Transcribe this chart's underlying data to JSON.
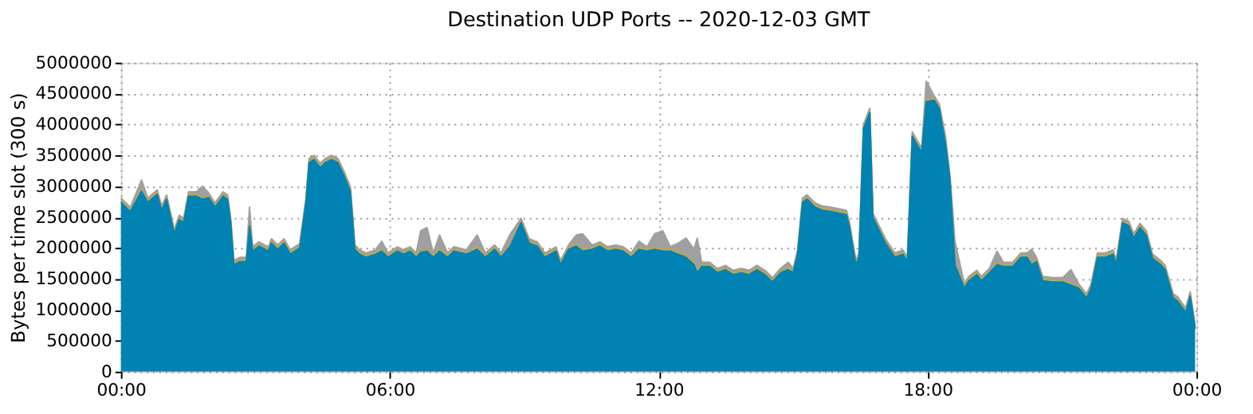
{
  "chart_data": {
    "type": "area",
    "stacked": true,
    "title": "Destination UDP Ports -- 2020-12-03 GMT",
    "ylabel": "Bytes per time slot (300 s)",
    "x": [
      0.0,
      0.21,
      0.46,
      0.6,
      0.81,
      0.91,
      1.02,
      1.19,
      1.3,
      1.4,
      1.51,
      1.68,
      1.82,
      1.96,
      2.1,
      2.28,
      2.38,
      2.45,
      2.52,
      2.66,
      2.8,
      2.87,
      2.94,
      3.08,
      3.29,
      3.36,
      3.5,
      3.64,
      3.78,
      3.99,
      4.13,
      4.2,
      4.31,
      4.45,
      4.56,
      4.7,
      4.84,
      4.98,
      5.12,
      5.22,
      5.33,
      5.47,
      5.68,
      5.82,
      5.96,
      6.17,
      6.31,
      6.45,
      6.59,
      6.69,
      6.83,
      6.97,
      7.11,
      7.29,
      7.43,
      7.71,
      7.95,
      8.13,
      8.34,
      8.48,
      8.69,
      8.93,
      9.11,
      9.29,
      9.46,
      9.71,
      9.81,
      9.99,
      10.16,
      10.3,
      10.51,
      10.69,
      10.86,
      11.04,
      11.21,
      11.39,
      11.56,
      11.74,
      11.91,
      12.09,
      12.26,
      12.44,
      12.61,
      12.79,
      12.86,
      12.96,
      13.14,
      13.31,
      13.49,
      13.66,
      13.84,
      14.02,
      14.19,
      14.37,
      14.54,
      14.72,
      14.89,
      15.0,
      15.1,
      15.21,
      15.31,
      15.49,
      15.66,
      15.84,
      16.19,
      16.26,
      16.4,
      16.47,
      16.57,
      16.71,
      16.78,
      16.89,
      17.06,
      17.27,
      17.45,
      17.55,
      17.66,
      17.76,
      17.87,
      17.97,
      18.15,
      18.26,
      18.4,
      18.5,
      18.61,
      18.82,
      18.92,
      19.1,
      19.2,
      19.38,
      19.55,
      19.69,
      19.9,
      20.08,
      20.22,
      20.32,
      20.43,
      20.57,
      20.78,
      21.02,
      21.2,
      21.37,
      21.55,
      21.65,
      21.79,
      21.97,
      22.14,
      22.21,
      22.35,
      22.49,
      22.6,
      22.74,
      22.88,
      23.02,
      23.2,
      23.3,
      23.48,
      23.58,
      23.76,
      23.86,
      23.97
    ],
    "series": [
      {
        "color": "#0083b3",
        "values": [
          2740000,
          2590000,
          2920000,
          2740000,
          2870000,
          2610000,
          2790000,
          2230000,
          2460000,
          2410000,
          2840000,
          2840000,
          2790000,
          2820000,
          2660000,
          2840000,
          2790000,
          2410000,
          1730000,
          1780000,
          1780000,
          2360000,
          1950000,
          2030000,
          1950000,
          2080000,
          1980000,
          2080000,
          1900000,
          2000000,
          2740000,
          3380000,
          3430000,
          3300000,
          3380000,
          3430000,
          3380000,
          3170000,
          2920000,
          1980000,
          1900000,
          1850000,
          1900000,
          1950000,
          1850000,
          1950000,
          1900000,
          1950000,
          1850000,
          1930000,
          1950000,
          1850000,
          1950000,
          1850000,
          1950000,
          1900000,
          1980000,
          1850000,
          1980000,
          1850000,
          2030000,
          2410000,
          2080000,
          2030000,
          1850000,
          1950000,
          1730000,
          1980000,
          2030000,
          1950000,
          1980000,
          2030000,
          1950000,
          1980000,
          1950000,
          1850000,
          1980000,
          1950000,
          1980000,
          1950000,
          1950000,
          1900000,
          1850000,
          1730000,
          1600000,
          1700000,
          1700000,
          1600000,
          1650000,
          1570000,
          1600000,
          1570000,
          1650000,
          1570000,
          1450000,
          1600000,
          1650000,
          1600000,
          1900000,
          2740000,
          2790000,
          2660000,
          2610000,
          2590000,
          2540000,
          2330000,
          1730000,
          1850000,
          3930000,
          4190000,
          2490000,
          2330000,
          2080000,
          1850000,
          1900000,
          1780000,
          3810000,
          3680000,
          3550000,
          4370000,
          4390000,
          4260000,
          3680000,
          3100000,
          1730000,
          1350000,
          1470000,
          1570000,
          1470000,
          1600000,
          1730000,
          1700000,
          1700000,
          1850000,
          1850000,
          1730000,
          1780000,
          1470000,
          1450000,
          1450000,
          1400000,
          1350000,
          1190000,
          1350000,
          1850000,
          1850000,
          1900000,
          1730000,
          2410000,
          2360000,
          2160000,
          2330000,
          2210000,
          1830000,
          1730000,
          1650000,
          1190000,
          1140000,
          960000,
          1220000,
          690000
        ]
      },
      {
        "color": "#e8a317",
        "values": [
          20000,
          20000,
          20000,
          20000,
          20000,
          20000,
          20000,
          20000,
          20000,
          20000,
          20000,
          20000,
          20000,
          20000,
          20000,
          20000,
          20000,
          20000,
          20000,
          20000,
          20000,
          20000,
          20000,
          20000,
          20000,
          20000,
          20000,
          20000,
          20000,
          20000,
          20000,
          20000,
          20000,
          20000,
          20000,
          20000,
          20000,
          20000,
          20000,
          20000,
          20000,
          20000,
          20000,
          20000,
          20000,
          20000,
          20000,
          20000,
          20000,
          20000,
          20000,
          20000,
          20000,
          20000,
          20000,
          20000,
          20000,
          20000,
          20000,
          20000,
          20000,
          20000,
          20000,
          20000,
          20000,
          20000,
          20000,
          20000,
          20000,
          20000,
          20000,
          20000,
          20000,
          20000,
          20000,
          20000,
          20000,
          20000,
          20000,
          20000,
          20000,
          20000,
          20000,
          20000,
          20000,
          20000,
          20000,
          20000,
          20000,
          20000,
          20000,
          20000,
          20000,
          20000,
          20000,
          20000,
          20000,
          20000,
          20000,
          20000,
          20000,
          20000,
          20000,
          20000,
          20000,
          20000,
          20000,
          20000,
          20000,
          20000,
          20000,
          20000,
          20000,
          20000,
          20000,
          20000,
          20000,
          20000,
          20000,
          20000,
          20000,
          20000,
          20000,
          20000,
          20000,
          20000,
          20000,
          20000,
          20000,
          20000,
          20000,
          20000,
          20000,
          20000,
          20000,
          20000,
          20000,
          20000,
          20000,
          20000,
          20000,
          20000,
          20000,
          20000,
          20000,
          20000,
          20000,
          20000,
          20000,
          20000,
          20000,
          20000,
          20000,
          20000,
          20000,
          20000,
          20000,
          20000,
          20000,
          20000,
          20000
        ]
      },
      {
        "color": "#a0a0a0",
        "values": [
          50000,
          50000,
          160000,
          50000,
          50000,
          50000,
          50000,
          50000,
          50000,
          50000,
          50000,
          50000,
          190000,
          50000,
          50000,
          50000,
          50000,
          50000,
          50000,
          50000,
          50000,
          280000,
          50000,
          50000,
          50000,
          50000,
          50000,
          50000,
          50000,
          50000,
          50000,
          50000,
          50000,
          50000,
          50000,
          50000,
          50000,
          50000,
          50000,
          50000,
          50000,
          50000,
          50000,
          140000,
          50000,
          50000,
          50000,
          50000,
          50000,
          330000,
          360000,
          50000,
          240000,
          50000,
          50000,
          50000,
          210000,
          50000,
          50000,
          50000,
          180000,
          50000,
          50000,
          50000,
          50000,
          50000,
          50000,
          50000,
          160000,
          260000,
          50000,
          50000,
          50000,
          50000,
          50000,
          50000,
          110000,
          50000,
          230000,
          310000,
          50000,
          160000,
          290000,
          230000,
          540000,
          50000,
          50000,
          50000,
          50000,
          50000,
          50000,
          50000,
          50000,
          50000,
          50000,
          50000,
          100000,
          50000,
          50000,
          50000,
          50000,
          50000,
          50000,
          50000,
          50000,
          50000,
          50000,
          50000,
          50000,
          50000,
          50000,
          50000,
          50000,
          50000,
          50000,
          50000,
          50000,
          50000,
          50000,
          310000,
          50000,
          50000,
          110000,
          50000,
          360000,
          50000,
          50000,
          50000,
          50000,
          50000,
          200000,
          50000,
          50000,
          50000,
          50000,
          230000,
          50000,
          50000,
          50000,
          50000,
          230000,
          50000,
          50000,
          50000,
          50000,
          50000,
          50000,
          50000,
          50000,
          50000,
          50000,
          50000,
          50000,
          50000,
          50000,
          50000,
          50000,
          50000,
          50000,
          50000,
          50000
        ]
      }
    ],
    "xlim": [
      0,
      24
    ],
    "xticks": [
      {
        "value": 0,
        "label": "00:00"
      },
      {
        "value": 6,
        "label": "06:00"
      },
      {
        "value": 12,
        "label": "12:00"
      },
      {
        "value": 18,
        "label": "18:00"
      },
      {
        "value": 24,
        "label": "00:00"
      }
    ],
    "ylim": [
      0,
      5000000
    ],
    "yticks": [
      0,
      500000,
      1000000,
      1500000,
      2000000,
      2500000,
      3000000,
      3500000,
      4000000,
      4500000,
      5000000
    ],
    "grid": true
  }
}
